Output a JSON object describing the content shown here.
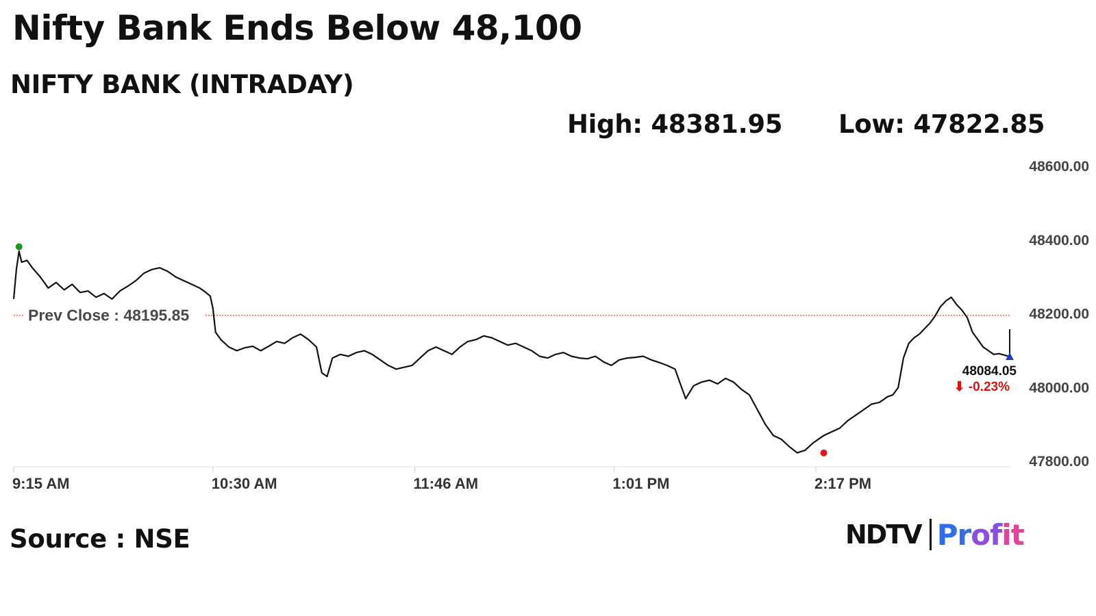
{
  "headline": "Nifty Bank Ends Below 48,100",
  "subtitle": "NIFTY BANK (INTRADAY)",
  "stats": {
    "high": "High: 48381.95",
    "low": "Low: 47822.85"
  },
  "source": "Source : NSE",
  "logo": {
    "ndtv": "NDTV",
    "profit_p": "Pr",
    "profit_o": "of",
    "profit_t": "it"
  },
  "chart_data": {
    "type": "line",
    "title": "NIFTY BANK (INTRADAY)",
    "ylim": [
      47800,
      48600
    ],
    "y_ticks": [
      48600,
      48400,
      48200,
      48000,
      47800
    ],
    "y_tick_labels": [
      "48600.00",
      "48400.00",
      "48200.00",
      "48000.00",
      "47800.00"
    ],
    "x_tick_labels": [
      "9:15 AM",
      "10:30 AM",
      "11:46 AM",
      "1:01 PM",
      "2:17 PM"
    ],
    "x_tick_minutes": [
      555,
      630,
      706,
      781,
      857
    ],
    "x_range_minutes": [
      555,
      930
    ],
    "prev_close": {
      "value": 48195.85,
      "label": "Prev Close : 48195.85"
    },
    "high_point": {
      "minute": 557,
      "value": 48381.95
    },
    "low_point": {
      "minute": 860,
      "value": 47822.85
    },
    "last_point": {
      "minute": 930,
      "value": 48084.05,
      "value_label": "48084.05",
      "change_label": "⬇ -0.23%"
    },
    "series": [
      {
        "minutes": [
          555,
          556,
          557,
          558,
          560,
          562,
          565,
          568,
          571,
          574,
          577,
          580,
          583,
          586,
          589,
          592,
          595,
          598,
          601,
          604,
          607,
          610,
          613,
          616,
          619,
          622,
          625,
          627,
          629,
          630,
          631,
          633,
          636,
          639,
          642,
          645,
          648,
          651,
          654,
          657,
          660,
          663,
          666,
          669,
          671,
          673,
          675,
          678,
          681,
          684,
          687,
          690,
          693,
          696,
          699,
          702,
          705,
          708,
          711,
          714,
          717,
          720,
          723,
          726,
          729,
          732,
          735,
          738,
          741,
          744,
          747,
          750,
          753,
          756,
          759,
          762,
          765,
          768,
          771,
          774,
          777,
          780,
          783,
          786,
          789,
          792,
          795,
          798,
          801,
          804,
          806,
          808,
          811,
          814,
          817,
          820,
          823,
          826,
          829,
          832,
          835,
          838,
          841,
          844,
          847,
          850,
          853,
          856,
          858,
          860,
          863,
          866,
          869,
          872,
          875,
          878,
          881,
          884,
          886,
          888,
          890,
          892,
          894,
          896,
          898,
          900,
          902,
          904,
          906,
          908,
          910,
          912,
          914,
          916,
          918,
          920,
          922,
          924,
          926,
          928,
          930
        ],
        "values": [
          48240,
          48320,
          48370,
          48340,
          48345,
          48325,
          48300,
          48270,
          48285,
          48265,
          48280,
          48258,
          48262,
          48245,
          48255,
          48240,
          48262,
          48275,
          48290,
          48310,
          48320,
          48325,
          48315,
          48300,
          48290,
          48280,
          48270,
          48260,
          48248,
          48215,
          48150,
          48130,
          48110,
          48100,
          48108,
          48112,
          48100,
          48112,
          48125,
          48120,
          48135,
          48145,
          48130,
          48110,
          48040,
          48030,
          48080,
          48090,
          48085,
          48095,
          48100,
          48090,
          48075,
          48060,
          48050,
          48055,
          48060,
          48080,
          48100,
          48110,
          48100,
          48090,
          48110,
          48125,
          48130,
          48140,
          48135,
          48125,
          48115,
          48120,
          48110,
          48100,
          48085,
          48080,
          48090,
          48095,
          48085,
          48080,
          48078,
          48085,
          48070,
          48060,
          48075,
          48080,
          48082,
          48085,
          48075,
          48068,
          48060,
          48050,
          48010,
          47970,
          48005,
          48015,
          48020,
          48010,
          48025,
          48015,
          47995,
          47980,
          47940,
          47900,
          47870,
          47860,
          47840,
          47823,
          47830,
          47850,
          47860,
          47870,
          47880,
          47890,
          47910,
          47925,
          47940,
          47955,
          47960,
          47975,
          47980,
          48000,
          48080,
          48120,
          48135,
          48145,
          48160,
          48175,
          48195,
          48220,
          48235,
          48245,
          48225,
          48210,
          48190,
          48150,
          48130,
          48110,
          48100,
          48090,
          48092,
          48088,
          48084
        ]
      }
    ]
  }
}
